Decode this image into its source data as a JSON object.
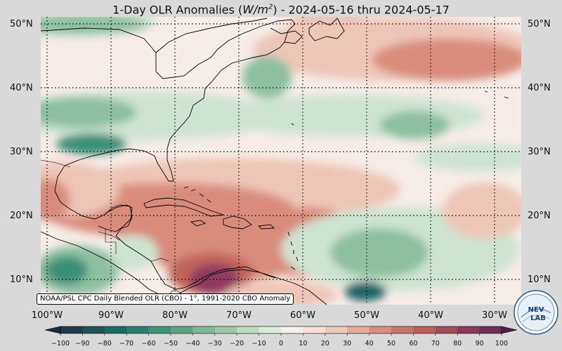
{
  "title": {
    "prefix": "1-Day OLR Anomalies (",
    "unit_base": "W/m",
    "unit_exp": "2",
    "suffix": ") - 2024-05-16 thru 2024-05-17"
  },
  "lat_labels": [
    "50°N",
    "40°N",
    "30°N",
    "20°N",
    "10°N"
  ],
  "lon_labels": [
    "100°W",
    "90°W",
    "80°W",
    "70°W",
    "60°W",
    "50°W",
    "40°W",
    "30°W"
  ],
  "credit": "NOAA/PSL CPC Daily Blended OLR (CBO) - 1°, 1991-2020 CBO Anomaly",
  "logo": {
    "line1": "NEV",
    "line2": "LAB"
  },
  "colorbar": {
    "ticks": [
      "−100",
      "−90",
      "−80",
      "−70",
      "−60",
      "−50",
      "−40",
      "−30",
      "−20",
      "−10",
      "0",
      "10",
      "20",
      "30",
      "40",
      "50",
      "60",
      "70",
      "80",
      "90",
      "100"
    ],
    "colors": [
      "#1f3b4d",
      "#1d5458",
      "#1a6b66",
      "#24806f",
      "#3c9379",
      "#5aa585",
      "#7bb896",
      "#9ccaa8",
      "#bddcbf",
      "#dcecd9",
      "#f4f1ee",
      "#f7e0d6",
      "#f0c8b8",
      "#e6ab98",
      "#d98e7b",
      "#cc7565",
      "#bd5e5a",
      "#a64a5a",
      "#8c3a5a",
      "#6f2d52"
    ]
  },
  "map_colors": {
    "neutral": "#f6ece8",
    "green_light": "#cfe3d2",
    "green": "#8cc0a0",
    "green_dark": "#3a8f78",
    "teal_dark": "#1e6468",
    "red_light": "#eec6b8",
    "red": "#d98c7a",
    "red_dark": "#c0655a",
    "magenta": "#8f3a5e"
  }
}
